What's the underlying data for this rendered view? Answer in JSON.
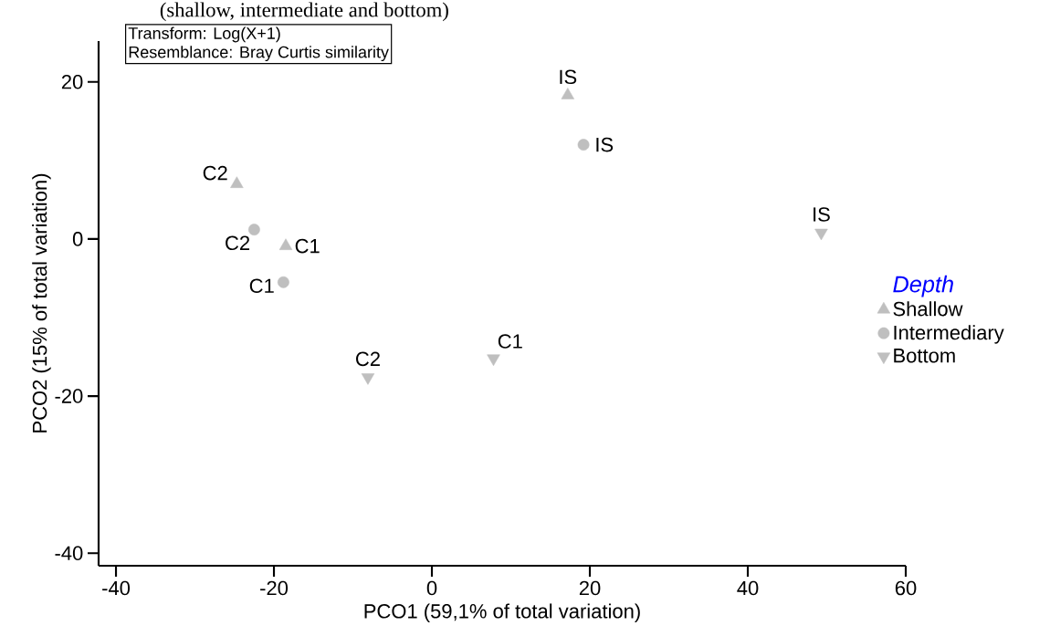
{
  "chart_data": {
    "type": "scatter",
    "title": "(shallow, intermediate and bottom)",
    "xlabel": "PCO1 (59,1% of total variation)",
    "ylabel": "PCO2 (15% of total variation)",
    "annotations": [
      "Transform: Log(X+1)",
      "Resemblance: Bray Curtis similarity"
    ],
    "legend_title": "Depth",
    "legend": "right",
    "xlim": [
      -42.2,
      60
    ],
    "ylim": [
      -41.6,
      25.2
    ],
    "xticks": [
      -40,
      -20,
      0,
      20,
      40,
      60
    ],
    "yticks": [
      -40,
      -20,
      0,
      20
    ],
    "series": [
      {
        "name": "Shallow",
        "marker": "triangle",
        "color": "#bfbfbf",
        "x": [
          -24.7,
          -18.5,
          17.2
        ],
        "values": [
          7.0,
          -0.9,
          18.3
        ],
        "value_labels": [
          "C2",
          "C1",
          "IS"
        ]
      },
      {
        "name": "Intermediary",
        "marker": "circle",
        "color": "#bfbfbf",
        "x": [
          -22.5,
          -18.8,
          19.2
        ],
        "values": [
          1.2,
          -5.5,
          12.0
        ],
        "value_labels": [
          "C2",
          "C1",
          "IS"
        ]
      },
      {
        "name": "Bottom",
        "marker": "triangle_down",
        "color": "#bfbfbf",
        "x": [
          -8.1,
          7.8,
          49.3
        ],
        "values": [
          -17.6,
          -15.2,
          0.8
        ],
        "value_labels": [
          "C2",
          "C1",
          "IS"
        ]
      }
    ]
  }
}
